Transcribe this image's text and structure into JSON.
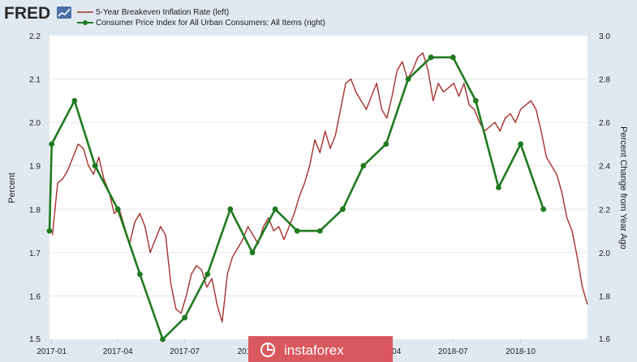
{
  "logo": {
    "text": "FRED"
  },
  "watermark": {
    "text": "instaforex"
  },
  "colors": {
    "background": "#e1e9f0",
    "plot_background": "#ffffff",
    "series_left": "#a62f2c",
    "series_right": "#1f7a1f",
    "watermark": "#d9585d",
    "logo_badge": "#4a6fa5"
  },
  "chart_data": {
    "type": "line",
    "grid": "horizontal",
    "legend_position": "top-left",
    "x_tick_labels": [
      "2017-01",
      "2017-04",
      "2017-07",
      "2017-10",
      "2018-01",
      "2018-04",
      "2018-07",
      "2018-10"
    ],
    "x_ticks": [
      "2017-01-01",
      "2017-04-01",
      "2017-07-01",
      "2017-10-01",
      "2018-01-01",
      "2018-04-01",
      "2018-07-01",
      "2018-10-01"
    ],
    "xlim": [
      "2016-12-29",
      "2018-12-31"
    ],
    "left_axis": {
      "label": "Percent",
      "ylim": [
        1.5,
        2.2
      ],
      "ticks": [
        "1.5",
        "1.6",
        "1.7",
        "1.8",
        "1.9",
        "2.0",
        "2.1",
        "2.2"
      ]
    },
    "right_axis": {
      "label": "Percent Change from Year Ago",
      "ylim": [
        1.6,
        3.0
      ],
      "ticks": [
        "1.6",
        "1.8",
        "2.0",
        "2.2",
        "2.4",
        "2.6",
        "2.8",
        "3.0"
      ]
    },
    "series": [
      {
        "name": "5-Year Breakeven Inflation Rate (left)",
        "axis": "left",
        "style": "line",
        "x": [
          "2017-01-02",
          "2017-01-09",
          "2017-01-16",
          "2017-01-23",
          "2017-01-30",
          "2017-02-06",
          "2017-02-13",
          "2017-02-20",
          "2017-02-27",
          "2017-03-06",
          "2017-03-13",
          "2017-03-20",
          "2017-03-27",
          "2017-04-03",
          "2017-04-10",
          "2017-04-17",
          "2017-04-24",
          "2017-05-01",
          "2017-05-08",
          "2017-05-15",
          "2017-05-22",
          "2017-05-29",
          "2017-06-05",
          "2017-06-12",
          "2017-06-19",
          "2017-06-26",
          "2017-07-03",
          "2017-07-10",
          "2017-07-17",
          "2017-07-24",
          "2017-07-31",
          "2017-08-07",
          "2017-08-14",
          "2017-08-21",
          "2017-08-28",
          "2017-09-04",
          "2017-09-11",
          "2017-09-18",
          "2017-09-25",
          "2017-10-02",
          "2017-10-09",
          "2017-10-16",
          "2017-10-23",
          "2017-10-30",
          "2017-11-06",
          "2017-11-13",
          "2017-11-20",
          "2017-11-27",
          "2017-12-04",
          "2017-12-11",
          "2017-12-18",
          "2017-12-25",
          "2018-01-01",
          "2018-01-08",
          "2018-01-15",
          "2018-01-22",
          "2018-01-29",
          "2018-02-05",
          "2018-02-12",
          "2018-02-19",
          "2018-02-26",
          "2018-03-05",
          "2018-03-12",
          "2018-03-19",
          "2018-03-26",
          "2018-04-02",
          "2018-04-09",
          "2018-04-16",
          "2018-04-23",
          "2018-04-30",
          "2018-05-07",
          "2018-05-14",
          "2018-05-21",
          "2018-05-28",
          "2018-06-04",
          "2018-06-11",
          "2018-06-18",
          "2018-06-25",
          "2018-07-02",
          "2018-07-09",
          "2018-07-16",
          "2018-07-23",
          "2018-07-30",
          "2018-08-06",
          "2018-08-13",
          "2018-08-20",
          "2018-08-27",
          "2018-09-03",
          "2018-09-10",
          "2018-09-17",
          "2018-09-24",
          "2018-10-01",
          "2018-10-08",
          "2018-10-15",
          "2018-10-22",
          "2018-10-29",
          "2018-11-05",
          "2018-11-12",
          "2018-11-19",
          "2018-11-26",
          "2018-12-03",
          "2018-12-10",
          "2018-12-17",
          "2018-12-24",
          "2018-12-31"
        ],
        "values": [
          1.74,
          1.86,
          1.87,
          1.89,
          1.92,
          1.95,
          1.94,
          1.9,
          1.88,
          1.92,
          1.87,
          1.84,
          1.79,
          1.8,
          1.76,
          1.72,
          1.77,
          1.79,
          1.76,
          1.7,
          1.73,
          1.76,
          1.74,
          1.63,
          1.57,
          1.56,
          1.6,
          1.65,
          1.67,
          1.66,
          1.62,
          1.64,
          1.58,
          1.54,
          1.65,
          1.69,
          1.71,
          1.73,
          1.76,
          1.74,
          1.72,
          1.76,
          1.78,
          1.75,
          1.76,
          1.73,
          1.76,
          1.79,
          1.83,
          1.86,
          1.9,
          1.96,
          1.93,
          1.98,
          1.94,
          1.97,
          2.03,
          2.09,
          2.1,
          2.07,
          2.05,
          2.03,
          2.06,
          2.09,
          2.03,
          2.01,
          2.06,
          2.12,
          2.14,
          2.1,
          2.12,
          2.15,
          2.16,
          2.12,
          2.05,
          2.09,
          2.07,
          2.08,
          2.09,
          2.06,
          2.09,
          2.04,
          2.03,
          2.0,
          1.98,
          1.99,
          2.0,
          1.98,
          2.01,
          2.02,
          2.0,
          2.03,
          2.04,
          2.05,
          2.03,
          1.98,
          1.92,
          1.9,
          1.88,
          1.84,
          1.78,
          1.75,
          1.69,
          1.62,
          1.58
        ]
      },
      {
        "name": "Consumer Price Index for All Urban Consumers: All Items (right)",
        "axis": "right",
        "style": "line-markers",
        "x": [
          "2016-12-01",
          "2017-01-01",
          "2017-02-01",
          "2017-03-01",
          "2017-04-01",
          "2017-05-01",
          "2017-06-01",
          "2017-07-01",
          "2017-08-01",
          "2017-09-01",
          "2017-10-01",
          "2017-11-01",
          "2017-12-01",
          "2018-01-01",
          "2018-02-01",
          "2018-03-01",
          "2018-04-01",
          "2018-05-01",
          "2018-06-01",
          "2018-07-01",
          "2018-08-01",
          "2018-09-01",
          "2018-10-01",
          "2018-11-01"
        ],
        "values": [
          2.1,
          2.5,
          2.7,
          2.4,
          2.2,
          1.9,
          1.6,
          1.7,
          1.9,
          2.2,
          2.0,
          2.2,
          2.1,
          2.1,
          2.2,
          2.4,
          2.5,
          2.8,
          2.9,
          2.9,
          2.7,
          2.3,
          2.5,
          2.2
        ]
      }
    ]
  }
}
